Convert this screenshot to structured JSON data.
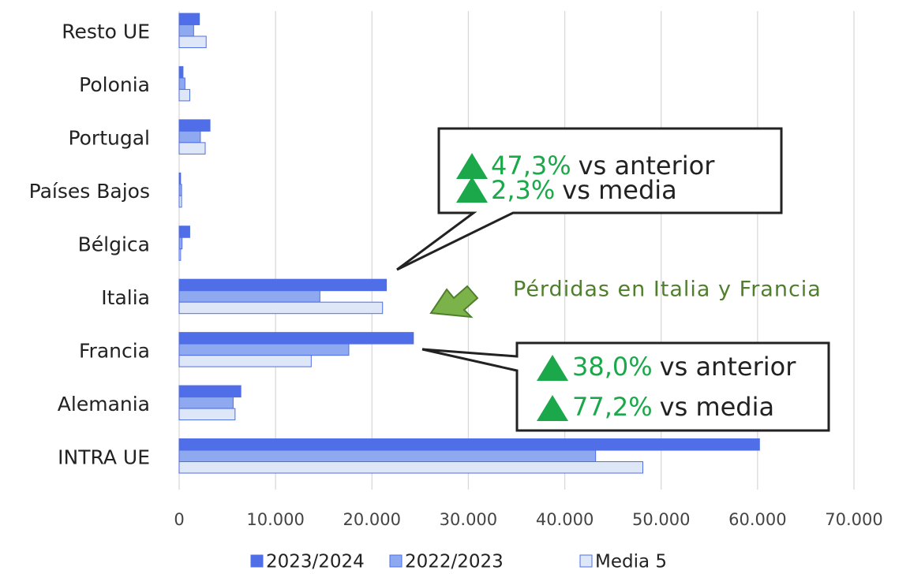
{
  "chart_data": {
    "type": "bar",
    "orientation": "horizontal",
    "categories": [
      "Resto UE",
      "Polonia",
      "Portugal",
      "Países Bajos",
      "Bélgica",
      "Italia",
      "Francia",
      "Alemania",
      "INTRA UE"
    ],
    "series": [
      {
        "name": "2023/2024",
        "color": "#4f6ee8",
        "values": [
          2100,
          400,
          3200,
          150,
          1100,
          21500,
          24300,
          6400,
          60200
        ]
      },
      {
        "name": "2022/2023",
        "color": "#8ea9ef",
        "values": [
          1500,
          600,
          2200,
          250,
          300,
          14600,
          17600,
          5600,
          43200
        ]
      },
      {
        "name": "Media 5",
        "color": "#dde7f8",
        "values": [
          2800,
          1100,
          2700,
          250,
          150,
          21100,
          13700,
          5800,
          48100
        ]
      }
    ],
    "xlim": [
      0,
      70000
    ],
    "xticks": [
      0,
      {
        "value": 10000,
        "label": "10.000"
      },
      {
        "value": 20000,
        "label": "20.000"
      },
      {
        "value": 30000,
        "label": "30.000"
      },
      {
        "value": 40000,
        "label": "40.000"
      },
      {
        "value": 50000,
        "label": "50.000"
      },
      {
        "value": 60000,
        "label": "60.000"
      },
      {
        "value": 70000,
        "label": "70.000"
      }
    ],
    "grid": true,
    "legend": "bottom",
    "annotations": [
      {
        "lines": [
          {
            "pct": "47,3%",
            "text": "vs anterior"
          },
          {
            "pct": "2,3%",
            "text": "vs media"
          }
        ]
      },
      {
        "lines": [
          {
            "pct": "38,0%",
            "text": "vs anterior"
          },
          {
            "pct": "77,2%",
            "text": "vs media"
          }
        ]
      }
    ],
    "note": "Pérdidas en Italia y Francia"
  }
}
